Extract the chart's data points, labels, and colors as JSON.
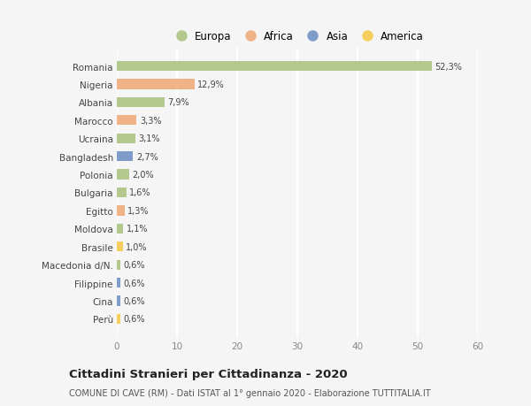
{
  "countries": [
    "Romania",
    "Nigeria",
    "Albania",
    "Marocco",
    "Ucraina",
    "Bangladesh",
    "Polonia",
    "Bulgaria",
    "Egitto",
    "Moldova",
    "Brasile",
    "Macedonia d/N.",
    "Filippine",
    "Cina",
    "Perù"
  ],
  "values": [
    52.3,
    12.9,
    7.9,
    3.3,
    3.1,
    2.7,
    2.0,
    1.6,
    1.3,
    1.1,
    1.0,
    0.6,
    0.6,
    0.6,
    0.6
  ],
  "labels": [
    "52,3%",
    "12,9%",
    "7,9%",
    "3,3%",
    "3,1%",
    "2,7%",
    "2,0%",
    "1,6%",
    "1,3%",
    "1,1%",
    "1,0%",
    "0,6%",
    "0,6%",
    "0,6%",
    "0,6%"
  ],
  "colors": [
    "#a8c07a",
    "#f0a875",
    "#a8c07a",
    "#f0a875",
    "#a8c07a",
    "#6b8dc4",
    "#a8c07a",
    "#a8c07a",
    "#f0a875",
    "#a8c07a",
    "#f5c842",
    "#a8c07a",
    "#6b8dc4",
    "#6b8dc4",
    "#f5c842"
  ],
  "legend_labels": [
    "Europa",
    "Africa",
    "Asia",
    "America"
  ],
  "legend_colors": [
    "#a8c07a",
    "#f0a875",
    "#6b8dc4",
    "#f5c842"
  ],
  "title": "Cittadini Stranieri per Cittadinanza - 2020",
  "subtitle": "COMUNE DI CAVE (RM) - Dati ISTAT al 1° gennaio 2020 - Elaborazione TUTTITALIA.IT",
  "xlim": [
    0,
    60
  ],
  "xticks": [
    0,
    10,
    20,
    30,
    40,
    50,
    60
  ],
  "bg_color": "#f5f5f5",
  "grid_color": "#ffffff",
  "bar_height": 0.55
}
